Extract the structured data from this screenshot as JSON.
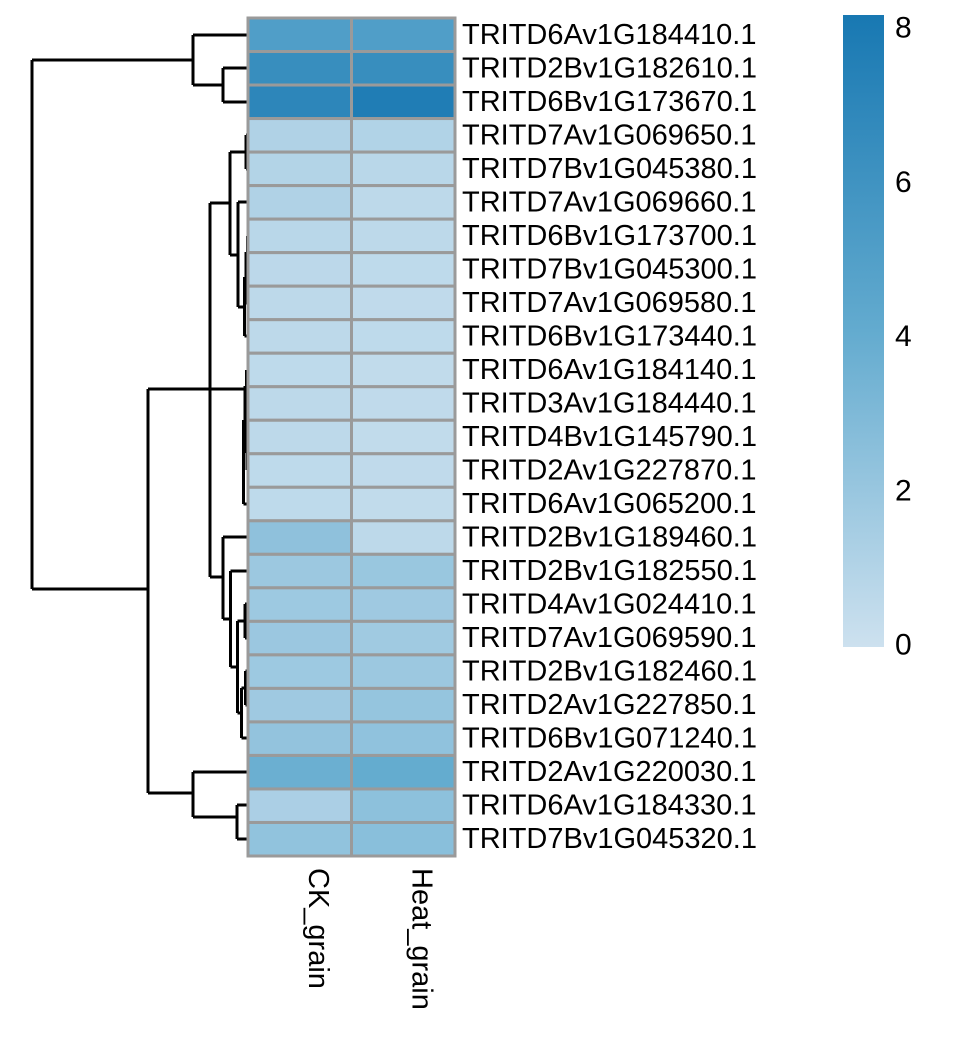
{
  "figure": {
    "background": "#ffffff",
    "grid_line_color": "#9a9a9a",
    "dendrogram_color": "#000000",
    "text_color": "#000000"
  },
  "chart_data": {
    "type": "heatmap",
    "title": "",
    "columns": [
      "CK_grain",
      "Heat_grain"
    ],
    "rows": [
      "TRITD6Av1G184410.1",
      "TRITD2Bv1G182610.1",
      "TRITD6Bv1G173670.1",
      "TRITD7Av1G069650.1",
      "TRITD7Bv1G045380.1",
      "TRITD7Av1G069660.1",
      "TRITD6Bv1G173700.1",
      "TRITD7Bv1G045300.1",
      "TRITD7Av1G069580.1",
      "TRITD6Bv1G173440.1",
      "TRITD6Av1G184140.1",
      "TRITD3Av1G184440.1",
      "TRITD4Bv1G145790.1",
      "TRITD2Av1G227870.1",
      "TRITD6Av1G065200.1",
      "TRITD2Bv1G189460.1",
      "TRITD2Bv1G182550.1",
      "TRITD4Av1G024410.1",
      "TRITD7Av1G069590.1",
      "TRITD2Bv1G182460.1",
      "TRITD2Av1G227850.1",
      "TRITD6Bv1G071240.1",
      "TRITD2Av1G220030.1",
      "TRITD6Av1G184330.1",
      "TRITD7Bv1G045320.1"
    ],
    "values": [
      [
        5.0,
        5.0
      ],
      [
        6.3,
        6.3
      ],
      [
        6.9,
        7.6
      ],
      [
        1.1,
        1.05
      ],
      [
        1.0,
        0.75
      ],
      [
        1.1,
        0.6
      ],
      [
        0.75,
        0.6
      ],
      [
        0.65,
        0.55
      ],
      [
        0.6,
        0.5
      ],
      [
        0.6,
        0.55
      ],
      [
        0.55,
        0.45
      ],
      [
        0.6,
        0.5
      ],
      [
        0.6,
        0.45
      ],
      [
        0.55,
        0.5
      ],
      [
        0.55,
        0.45
      ],
      [
        2.35,
        0.6
      ],
      [
        1.85,
        1.95
      ],
      [
        1.8,
        1.75
      ],
      [
        1.9,
        1.7
      ],
      [
        1.8,
        1.85
      ],
      [
        1.75,
        2.1
      ],
      [
        2.2,
        2.3
      ],
      [
        3.7,
        3.95
      ],
      [
        1.3,
        2.4
      ],
      [
        2.25,
        2.55
      ]
    ],
    "colorbar": {
      "min": 0,
      "max": 8,
      "ticks": [
        8,
        6,
        4,
        2,
        0
      ],
      "color_min": "#cde1ef",
      "color_mid": "#63abcf",
      "color_max": "#1878b2"
    },
    "legend_position": "right",
    "row_dendrogram_segments": [
      [
        193,
        35,
        248,
        35
      ],
      [
        223,
        68,
        248,
        68
      ],
      [
        223,
        102,
        248,
        102
      ],
      [
        223,
        68,
        223,
        102
      ],
      [
        193,
        85,
        223,
        85
      ],
      [
        193,
        35,
        193,
        85
      ],
      [
        32,
        60,
        193,
        60
      ],
      [
        32,
        60,
        32,
        589
      ],
      [
        32,
        589,
        148,
        589
      ],
      [
        148,
        389,
        148,
        793
      ],
      [
        148,
        389,
        246.5,
        389
      ],
      [
        210,
        203,
        210,
        577
      ],
      [
        210,
        203,
        230,
        203
      ],
      [
        230,
        152,
        230,
        255
      ],
      [
        230,
        152,
        246,
        152
      ],
      [
        246,
        135,
        246,
        169
      ],
      [
        246,
        135,
        248,
        135
      ],
      [
        246,
        169,
        248,
        169
      ],
      [
        230,
        255,
        238,
        255
      ],
      [
        238,
        202,
        238,
        307
      ],
      [
        238,
        202,
        248,
        202
      ],
      [
        238,
        307,
        244.5,
        307
      ],
      [
        244.5,
        277,
        244.5,
        336
      ],
      [
        244.5,
        336,
        248,
        336
      ],
      [
        244.5,
        277,
        246,
        277
      ],
      [
        246,
        252,
        246,
        303
      ],
      [
        246,
        303,
        248,
        303
      ],
      [
        246,
        252,
        247.5,
        252
      ],
      [
        247.5,
        236,
        247.5,
        269
      ],
      [
        247.5,
        236,
        248,
        236
      ],
      [
        247.5,
        269,
        248,
        269
      ],
      [
        246.5,
        370,
        246.5,
        403
      ],
      [
        246.5,
        370,
        248,
        370
      ],
      [
        246.5,
        403,
        248,
        403
      ],
      [
        247,
        437,
        247,
        470
      ],
      [
        247,
        437,
        248,
        437
      ],
      [
        247,
        470,
        248,
        470
      ],
      [
        245,
        386,
        245,
        453
      ],
      [
        243.5,
        420,
        243.5,
        504
      ],
      [
        243.5,
        504,
        248,
        504
      ],
      [
        148,
        793,
        193,
        793
      ],
      [
        193,
        772,
        193,
        817
      ],
      [
        193,
        772,
        248,
        772
      ],
      [
        193,
        817,
        237,
        817
      ],
      [
        237,
        805,
        237,
        839
      ],
      [
        237,
        805,
        248,
        805
      ],
      [
        237,
        839,
        248,
        839
      ],
      [
        210,
        577,
        223,
        577
      ],
      [
        223,
        537,
        223,
        619
      ],
      [
        223,
        537,
        248,
        537
      ],
      [
        223,
        619,
        230.5,
        619
      ],
      [
        230.5,
        571,
        230.5,
        667
      ],
      [
        230.5,
        571,
        248,
        571
      ],
      [
        230.5,
        667,
        237.5,
        667
      ],
      [
        237.5,
        621,
        237.5,
        713
      ],
      [
        237.5,
        621,
        245,
        621
      ],
      [
        245,
        604,
        245,
        638
      ],
      [
        245,
        604,
        248,
        604
      ],
      [
        245,
        638,
        248,
        638
      ],
      [
        237.5,
        713,
        241.5,
        713
      ],
      [
        241.5,
        688,
        241.5,
        738
      ],
      [
        241.5,
        738,
        248,
        738
      ],
      [
        241.5,
        688,
        245.5,
        688
      ],
      [
        245.5,
        671,
        245.5,
        705
      ],
      [
        245.5,
        671,
        248,
        671
      ],
      [
        245.5,
        705,
        248,
        705
      ]
    ]
  }
}
